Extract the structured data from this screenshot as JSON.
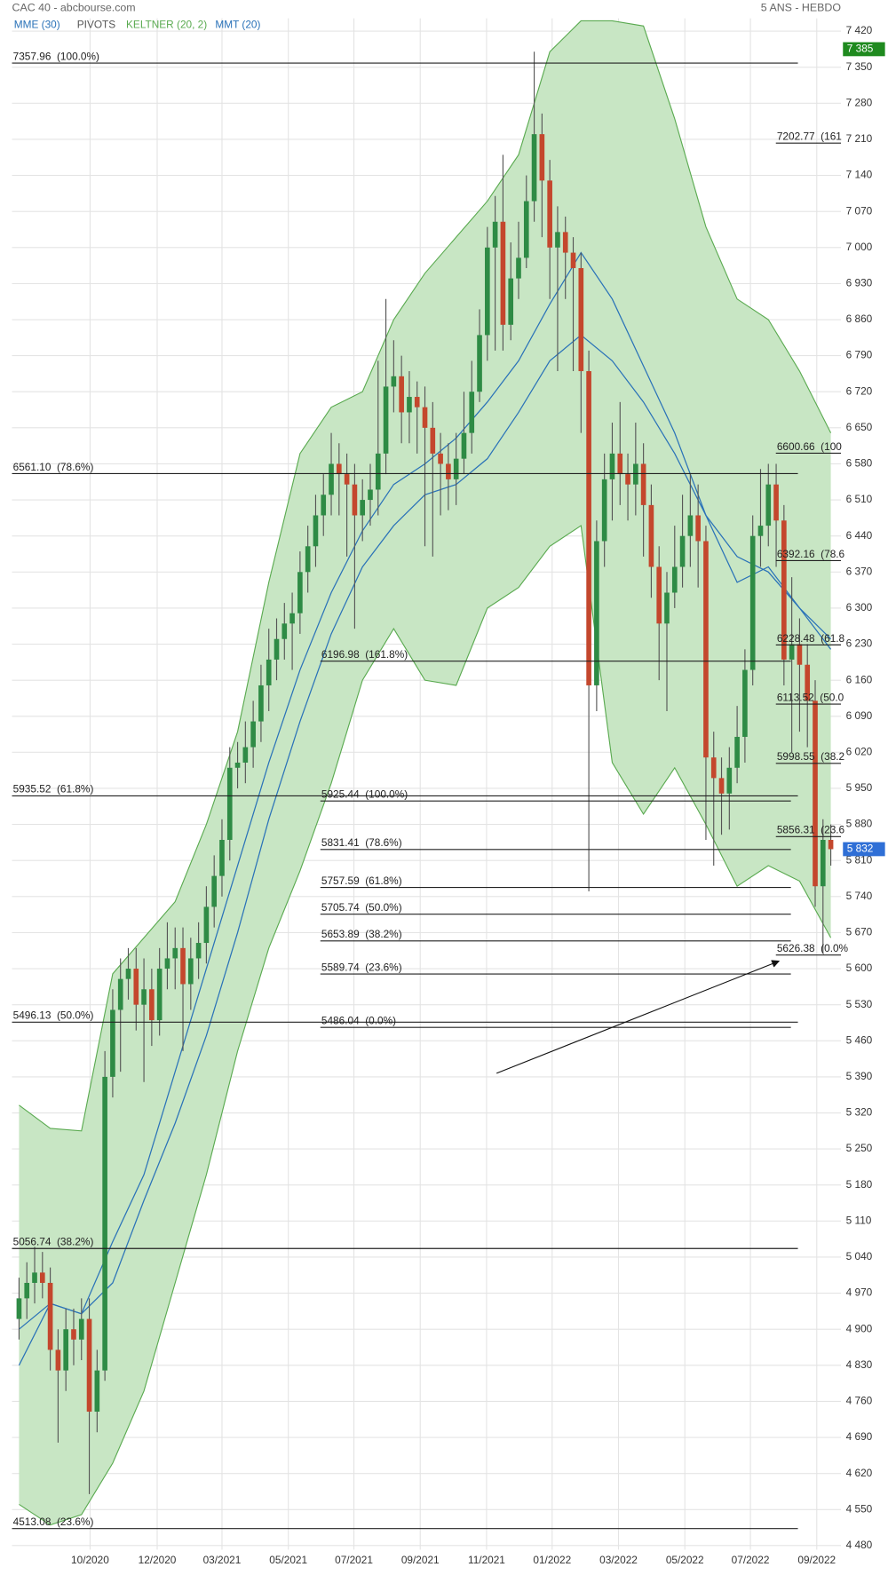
{
  "chart_data": {
    "type": "candlestick",
    "title": "CAC 40 - abcbourse.com",
    "period": "5 ANS - HEBDO",
    "pivots_label": "PIVOTS",
    "xlim": [
      -0.9,
      105.3
    ],
    "ylim": [
      4472,
      7445
    ],
    "xticks": [
      {
        "value": 9.1,
        "label": "10/2020"
      },
      {
        "value": 17.7,
        "label": "12/2020"
      },
      {
        "value": 26,
        "label": "03/2021"
      },
      {
        "value": 34.5,
        "label": "05/2021"
      },
      {
        "value": 42.9,
        "label": "07/2021"
      },
      {
        "value": 51.4,
        "label": "09/2021"
      },
      {
        "value": 59.9,
        "label": "11/2021"
      },
      {
        "value": 68.3,
        "label": "01/2022"
      },
      {
        "value": 76.8,
        "label": "03/2022"
      },
      {
        "value": 85.3,
        "label": "05/2022"
      },
      {
        "value": 93.7,
        "label": "07/2022"
      },
      {
        "value": 102.2,
        "label": "09/2022"
      }
    ],
    "yticks": [
      {
        "value": 4480,
        "label": "4 480"
      },
      {
        "value": 4550,
        "label": "4 550"
      },
      {
        "value": 4620,
        "label": "4 620"
      },
      {
        "value": 4690,
        "label": "4 690"
      },
      {
        "value": 4760,
        "label": "4 760"
      },
      {
        "value": 4830,
        "label": "4 830"
      },
      {
        "value": 4900,
        "label": "4 900"
      },
      {
        "value": 4970,
        "label": "4 970"
      },
      {
        "value": 5040,
        "label": "5 040"
      },
      {
        "value": 5110,
        "label": "5 110"
      },
      {
        "value": 5180,
        "label": "5 180"
      },
      {
        "value": 5250,
        "label": "5 250"
      },
      {
        "value": 5320,
        "label": "5 320"
      },
      {
        "value": 5390,
        "label": "5 390"
      },
      {
        "value": 5460,
        "label": "5 460"
      },
      {
        "value": 5530,
        "label": "5 530"
      },
      {
        "value": 5600,
        "label": "5 600"
      },
      {
        "value": 5670,
        "label": "5 670"
      },
      {
        "value": 5740,
        "label": "5 740"
      },
      {
        "value": 5810,
        "label": "5 810"
      },
      {
        "value": 5880,
        "label": "5 880"
      },
      {
        "value": 5950,
        "label": "5 950"
      },
      {
        "value": 6020,
        "label": "6 020"
      },
      {
        "value": 6090,
        "label": "6 090"
      },
      {
        "value": 6160,
        "label": "6 160"
      },
      {
        "value": 6230,
        "label": "6 230"
      },
      {
        "value": 6300,
        "label": "6 300"
      },
      {
        "value": 6370,
        "label": "6 370"
      },
      {
        "value": 6440,
        "label": "6 440"
      },
      {
        "value": 6510,
        "label": "6 510"
      },
      {
        "value": 6580,
        "label": "6 580"
      },
      {
        "value": 6650,
        "label": "6 650"
      },
      {
        "value": 6720,
        "label": "6 720"
      },
      {
        "value": 6790,
        "label": "6 790"
      },
      {
        "value": 6860,
        "label": "6 860"
      },
      {
        "value": 6930,
        "label": "6 930"
      },
      {
        "value": 7000,
        "label": "7 000"
      },
      {
        "value": 7070,
        "label": "7 070"
      },
      {
        "value": 7140,
        "label": "7 140"
      },
      {
        "value": 7210,
        "label": "7 210"
      },
      {
        "value": 7280,
        "label": "7 280"
      },
      {
        "value": 7350,
        "label": "7 350"
      },
      {
        "value": 7420,
        "label": "7 420"
      }
    ],
    "grid": true,
    "up_color": "#2e8b45",
    "down_color": "#c4472d",
    "open": [
      4920,
      4960,
      4990,
      5010,
      4990,
      4860,
      4820,
      4900,
      4880,
      4920,
      4740,
      4820,
      5390,
      5520,
      5580,
      5600,
      5530,
      5560,
      5500,
      5600,
      5620,
      5640,
      5570,
      5620,
      5650,
      5720,
      5780,
      5850,
      5990,
      6000,
      6030,
      6080,
      6150,
      6200,
      6240,
      6270,
      6290,
      6370,
      6420,
      6480,
      6520,
      6580,
      6560,
      6540,
      6480,
      6510,
      6530,
      6600,
      6730,
      6750,
      6680,
      6710,
      6690,
      6650,
      6600,
      6580,
      6550,
      6590,
      6640,
      6720,
      6830,
      7000,
      7050,
      6850,
      6940,
      6980,
      7090,
      7220,
      7130,
      7000,
      7030,
      6990,
      6960,
      6760,
      6150,
      6430,
      6550,
      6600,
      6560,
      6540,
      6580,
      6500,
      6380,
      6270,
      6330,
      6380,
      6440,
      6480,
      6430,
      6010,
      5970,
      5940,
      5990,
      6050,
      6180,
      6440,
      6460,
      6540,
      6470,
      6200,
      6230,
      6190,
      6120,
      5760,
      5850
    ],
    "high": [
      5000,
      5030,
      5060,
      5050,
      5020,
      4900,
      4940,
      4940,
      4960,
      4960,
      4860,
      5440,
      5560,
      5620,
      5640,
      5640,
      5620,
      5600,
      5640,
      5690,
      5680,
      5680,
      5660,
      5690,
      5760,
      5820,
      5890,
      6030,
      6040,
      6080,
      6120,
      6190,
      6260,
      6280,
      6310,
      6330,
      6410,
      6460,
      6520,
      6560,
      6640,
      6620,
      6600,
      6580,
      6550,
      6580,
      6780,
      6900,
      6820,
      6790,
      6760,
      6740,
      6730,
      6700,
      6640,
      6620,
      6640,
      6720,
      6780,
      6880,
      7040,
      7100,
      7180,
      7010,
      7050,
      7140,
      7380,
      7260,
      7170,
      7080,
      7060,
      7020,
      6990,
      6800,
      6470,
      6600,
      6660,
      6700,
      6600,
      6660,
      6620,
      6540,
      6420,
      6370,
      6460,
      6520,
      6560,
      6540,
      6460,
      6060,
      6010,
      6030,
      6110,
      6220,
      6480,
      6570,
      6580,
      6580,
      6500,
      6360,
      6280,
      6230,
      6160,
      5890,
      5880
    ],
    "low": [
      4880,
      4920,
      4950,
      4960,
      4820,
      4680,
      4780,
      4830,
      4840,
      4580,
      4700,
      4800,
      5350,
      5400,
      5540,
      5480,
      5380,
      5450,
      5470,
      5560,
      5560,
      5440,
      5520,
      5580,
      5610,
      5680,
      5740,
      5810,
      5950,
      5960,
      5990,
      6040,
      6100,
      6160,
      6200,
      6180,
      6250,
      6330,
      6380,
      6440,
      6480,
      6480,
      6400,
      6260,
      6430,
      6460,
      6480,
      6560,
      6680,
      6620,
      6620,
      6600,
      6420,
      6400,
      6480,
      6490,
      6500,
      6560,
      6600,
      6700,
      6780,
      6800,
      6800,
      6820,
      6900,
      6960,
      7050,
      7020,
      6900,
      6760,
      6900,
      6760,
      6640,
      5750,
      6100,
      6380,
      6470,
      6500,
      6470,
      6480,
      6400,
      6320,
      6160,
      6100,
      6300,
      6340,
      6380,
      6340,
      5850,
      5800,
      5860,
      5870,
      5960,
      6000,
      6150,
      6380,
      6420,
      6380,
      6150,
      6020,
      6060,
      6030,
      5720,
      5630,
      5800
    ],
    "close": [
      4960,
      4990,
      5010,
      4990,
      4860,
      4820,
      4900,
      4880,
      4920,
      4740,
      4820,
      5390,
      5520,
      5580,
      5600,
      5530,
      5560,
      5500,
      5600,
      5620,
      5640,
      5570,
      5620,
      5650,
      5720,
      5780,
      5850,
      5990,
      6000,
      6030,
      6080,
      6150,
      6200,
      6240,
      6270,
      6290,
      6370,
      6420,
      6480,
      6520,
      6580,
      6560,
      6540,
      6480,
      6510,
      6530,
      6600,
      6730,
      6750,
      6680,
      6710,
      6690,
      6650,
      6600,
      6580,
      6550,
      6590,
      6640,
      6720,
      6830,
      7000,
      7050,
      6850,
      6940,
      6980,
      7090,
      7220,
      7130,
      7000,
      7030,
      6990,
      6960,
      6760,
      6150,
      6430,
      6550,
      6600,
      6560,
      6540,
      6580,
      6500,
      6380,
      6270,
      6330,
      6380,
      6440,
      6480,
      6430,
      6010,
      5970,
      5940,
      5990,
      6050,
      6180,
      6440,
      6460,
      6540,
      6470,
      6200,
      6230,
      6190,
      6120,
      5760,
      5850,
      5832
    ],
    "overlay_x": [
      0,
      4,
      8,
      12,
      16,
      20,
      24,
      28,
      32,
      36,
      40,
      44,
      48,
      52,
      56,
      60,
      64,
      68,
      72,
      76,
      80,
      84,
      88,
      92,
      96,
      100,
      104
    ],
    "keltner": {
      "name": "KELTNER (20, 2)",
      "color": "#5aaa50",
      "fill": "#c8e6c4",
      "upper": [
        5335,
        5290,
        5285,
        5590,
        5660,
        5730,
        5880,
        6060,
        6350,
        6600,
        6690,
        6720,
        6860,
        6950,
        7020,
        7090,
        7180,
        7380,
        7440,
        7440,
        7430,
        7250,
        7040,
        6900,
        6860,
        6760,
        6640
      ],
      "lower": [
        4560,
        4520,
        4540,
        4640,
        4780,
        4990,
        5200,
        5440,
        5640,
        5790,
        5960,
        6160,
        6260,
        6160,
        6150,
        6300,
        6340,
        6420,
        6460,
        6000,
        5900,
        5990,
        5880,
        5760,
        5800,
        5770,
        5660
      ]
    },
    "series": [
      {
        "name": "MME (30)",
        "color": "#2a72b8",
        "values": [
          4830,
          4950,
          4930,
          4990,
          5150,
          5300,
          5470,
          5670,
          5890,
          6080,
          6250,
          6380,
          6460,
          6520,
          6540,
          6590,
          6680,
          6780,
          6830,
          6780,
          6700,
          6600,
          6480,
          6400,
          6370,
          6300,
          6220
        ]
      },
      {
        "name": "MMT (20)",
        "color": "#2a72b8",
        "values": [
          4900,
          4950,
          4930,
          5070,
          5200,
          5400,
          5600,
          5800,
          6000,
          6180,
          6330,
          6450,
          6540,
          6580,
          6630,
          6700,
          6780,
          6890,
          6990,
          6900,
          6770,
          6640,
          6480,
          6350,
          6380,
          6300,
          6240
        ]
      }
    ],
    "fib_left": [
      {
        "value": 7357.96,
        "label": "7357.96  (100.0%)"
      },
      {
        "value": 6561.1,
        "label": "6561.10  (78.6%)"
      },
      {
        "value": 5935.52,
        "label": "5935.52  (61.8%)"
      },
      {
        "value": 5496.13,
        "label": "5496.13  (50.0%)"
      },
      {
        "value": 5056.74,
        "label": "5056.74  (38.2%)"
      },
      {
        "value": 4513.08,
        "label": "4513.08  (23.6%)"
      }
    ],
    "fib_mid": [
      {
        "value": 6196.98,
        "label": "6196.98  (161.8%)"
      },
      {
        "value": 5925.44,
        "label": "5925.44  (100.0%)"
      },
      {
        "value": 5831.41,
        "label": "5831.41  (78.6%)"
      },
      {
        "value": 5757.59,
        "label": "5757.59  (61.8%)"
      },
      {
        "value": 5705.74,
        "label": "5705.74  (50.0%)"
      },
      {
        "value": 5653.89,
        "label": "5653.89  (38.2%)"
      },
      {
        "value": 5589.74,
        "label": "5589.74  (23.6%)"
      },
      {
        "value": 5486.04,
        "label": "5486.04  (0.0%)"
      }
    ],
    "fib_right": [
      {
        "value": 7202.77,
        "label": "7202.77  (161"
      },
      {
        "value": 6600.66,
        "label": "6600.66  (100"
      },
      {
        "value": 6392.16,
        "label": "6392.16  (78.6"
      },
      {
        "value": 6228.48,
        "label": "6228.48  (61.8"
      },
      {
        "value": 6113.52,
        "label": "6113.52  (50.0"
      },
      {
        "value": 5998.55,
        "label": "5998.55  (38.2"
      },
      {
        "value": 5856.31,
        "label": "5856.31  (23.6"
      },
      {
        "value": 5626.38,
        "label": "5626.38  (0.0%"
      }
    ],
    "high_marker": {
      "value": 7385,
      "label": "7 385",
      "color": "#1f8a1f"
    },
    "last_price": {
      "value": 5832,
      "label": "5 832",
      "color": "#2f6fd6"
    }
  }
}
